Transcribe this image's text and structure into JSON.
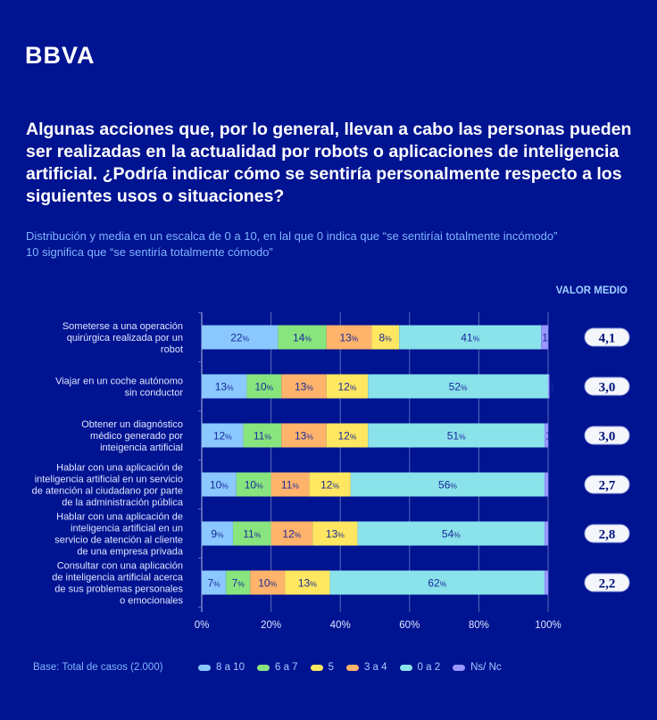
{
  "brand": {
    "logo": "BBVA"
  },
  "title": "Algunas acciones que, por lo general, llevan a cabo las personas pueden ser realizadas en la actualidad por robots o aplicaciones de inteligencia artificial. ¿Podría indicar cómo se sentiría personalmente respecto a los siguientes usos o situaciones?",
  "subtitle_lines": [
    "Distribución y media en un escalca de 0 a 10, en lal que 0 indica que “se sentiríai totalmente incómodo”",
    "10 significa que “se sentiría totalmente cómodo”"
  ],
  "valor_medio_label": "VALOR MEDIO",
  "base": "Base: Total de casos (2.000)",
  "colors": {
    "background": "#001391",
    "8a10": "#8ac8ff",
    "6a7": "#88e57e",
    "5": "#ffe761",
    "3a4": "#ffb36b",
    "0a2": "#8ae2ea",
    "nsnc": "#9a96ff",
    "label_text": "#1a2a9a"
  },
  "chart_data": {
    "type": "bar",
    "orientation": "horizontal-stacked",
    "xlim": [
      0,
      100
    ],
    "x_ticks": [
      "0%",
      "20%",
      "40%",
      "60%",
      "80%",
      "100%"
    ],
    "grid": true,
    "legend_placement": "bottom",
    "legend": [
      {
        "key": "8a10",
        "label": "8 a 10"
      },
      {
        "key": "6a7",
        "label": "6 a 7"
      },
      {
        "key": "5",
        "label": "5"
      },
      {
        "key": "3a4",
        "label": "3 a 4"
      },
      {
        "key": "0a2",
        "label": "0 a 2"
      },
      {
        "key": "nsnc",
        "label": "Ns/ Nc"
      }
    ],
    "segment_order": [
      "8a10",
      "6a7",
      "3a4",
      "5",
      "0a2",
      "nsnc"
    ],
    "categories": [
      {
        "label": [
          "Someterse a una operación",
          "quirúrgica realizada por un",
          "robot"
        ],
        "values": {
          "8a10": 22,
          "6a7": 14,
          "3a4": 13,
          "5": 8,
          "0a2": 41,
          "nsnc": 1
        },
        "mean": "4,1"
      },
      {
        "label": [
          "Viajar en un coche autónomo",
          "sin conductor"
        ],
        "values": {
          "8a10": 13,
          "6a7": 10,
          "3a4": 13,
          "5": 12,
          "0a2": 52,
          "nsnc": 1
        },
        "mean": "3,0"
      },
      {
        "label": [
          "Obtener un diagnóstico",
          "médico generado por",
          "inteigencia artificial"
        ],
        "values": {
          "8a10": 12,
          "6a7": 11,
          "3a4": 13,
          "5": 12,
          "0a2": 51,
          "nsnc": 1
        },
        "mean": "3,0"
      },
      {
        "label": [
          "Hablar con una aplicación de",
          "inteligencia artificial en un servicio",
          "de atención al ciudadano por parte",
          "de la administración pública"
        ],
        "values": {
          "8a10": 10,
          "6a7": 10,
          "3a4": 11,
          "5": 12,
          "0a2": 56,
          "nsnc": null
        },
        "mean": "2,7"
      },
      {
        "label": [
          "Hablar con una aplicación de",
          "inteligencia artificial en un",
          "servicio de atención al cliente",
          "de una empresa privada"
        ],
        "values": {
          "8a10": 9,
          "6a7": 11,
          "3a4": 12,
          "5": 13,
          "0a2": 54,
          "nsnc": null
        },
        "mean": "2,8"
      },
      {
        "label": [
          "Consultar con una aplicación",
          "de inteligencia artificial acerca",
          "de sus problemas personales",
          "o emocionales"
        ],
        "values": {
          "8a10": 7,
          "6a7": 7,
          "3a4": 10,
          "5": 13,
          "0a2": 62,
          "nsnc": null
        },
        "mean": "2,2"
      }
    ]
  }
}
